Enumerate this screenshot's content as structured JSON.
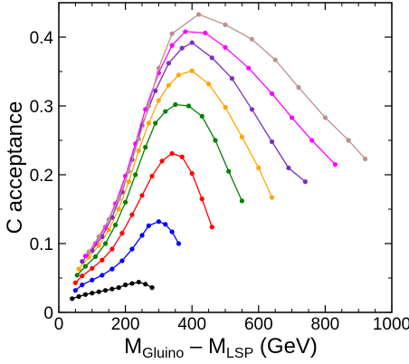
{
  "chart_data": {
    "type": "line",
    "title": "",
    "ylabel": "C  acceptance",
    "xlabel": {
      "parts": [
        {
          "text": "M",
          "sub": false
        },
        {
          "text": "Gluino",
          "sub": true
        },
        {
          "text": " – M",
          "sub": false
        },
        {
          "text": "LSP",
          "sub": true
        },
        {
          "text": "  (GeV)",
          "sub": false
        }
      ]
    },
    "xlim": [
      0,
      1000
    ],
    "ylim": [
      0,
      0.45
    ],
    "x_ticks": [
      "0",
      "200",
      "400",
      "600",
      "800",
      "1000"
    ],
    "y_ticks": [
      "0",
      "0.1",
      "0.2",
      "0.3",
      "0.4"
    ],
    "grid": false,
    "legend": "none",
    "series": [
      {
        "color": "#000000",
        "points": [
          [
            40,
            0.02
          ],
          [
            60,
            0.023
          ],
          [
            80,
            0.026
          ],
          [
            100,
            0.028
          ],
          [
            120,
            0.03
          ],
          [
            140,
            0.032
          ],
          [
            160,
            0.034
          ],
          [
            180,
            0.036
          ],
          [
            200,
            0.04
          ],
          [
            220,
            0.042
          ],
          [
            240,
            0.044
          ],
          [
            260,
            0.041
          ],
          [
            280,
            0.036
          ]
        ]
      },
      {
        "color": "#0000ff",
        "points": [
          [
            50,
            0.032
          ],
          [
            70,
            0.04
          ],
          [
            100,
            0.047
          ],
          [
            130,
            0.054
          ],
          [
            160,
            0.063
          ],
          [
            190,
            0.075
          ],
          [
            220,
            0.092
          ],
          [
            250,
            0.112
          ],
          [
            270,
            0.126
          ],
          [
            300,
            0.132
          ],
          [
            320,
            0.128
          ],
          [
            340,
            0.117
          ],
          [
            360,
            0.1
          ]
        ]
      },
      {
        "color": "#ff0000",
        "points": [
          [
            50,
            0.043
          ],
          [
            70,
            0.053
          ],
          [
            100,
            0.064
          ],
          [
            130,
            0.076
          ],
          [
            160,
            0.092
          ],
          [
            190,
            0.115
          ],
          [
            220,
            0.142
          ],
          [
            250,
            0.17
          ],
          [
            280,
            0.198
          ],
          [
            310,
            0.22
          ],
          [
            340,
            0.231
          ],
          [
            370,
            0.226
          ],
          [
            400,
            0.202
          ],
          [
            430,
            0.165
          ],
          [
            460,
            0.124
          ]
        ]
      },
      {
        "color": "#008000",
        "points": [
          [
            55,
            0.054
          ],
          [
            80,
            0.067
          ],
          [
            110,
            0.081
          ],
          [
            140,
            0.1
          ],
          [
            170,
            0.127
          ],
          [
            200,
            0.16
          ],
          [
            230,
            0.2
          ],
          [
            260,
            0.24
          ],
          [
            290,
            0.275
          ],
          [
            320,
            0.292
          ],
          [
            350,
            0.302
          ],
          [
            390,
            0.3
          ],
          [
            430,
            0.285
          ],
          [
            470,
            0.25
          ],
          [
            510,
            0.205
          ],
          [
            550,
            0.162
          ]
        ]
      },
      {
        "color": "#ffa500",
        "points": [
          [
            60,
            0.063
          ],
          [
            90,
            0.08
          ],
          [
            120,
            0.097
          ],
          [
            150,
            0.12
          ],
          [
            180,
            0.15
          ],
          [
            210,
            0.19
          ],
          [
            240,
            0.235
          ],
          [
            270,
            0.275
          ],
          [
            300,
            0.308
          ],
          [
            330,
            0.33
          ],
          [
            360,
            0.345
          ],
          [
            400,
            0.351
          ],
          [
            450,
            0.332
          ],
          [
            500,
            0.298
          ],
          [
            550,
            0.255
          ],
          [
            600,
            0.21
          ],
          [
            640,
            0.167
          ]
        ]
      },
      {
        "color": "#7b2fbe",
        "points": [
          [
            70,
            0.074
          ],
          [
            100,
            0.09
          ],
          [
            130,
            0.11
          ],
          [
            160,
            0.138
          ],
          [
            190,
            0.175
          ],
          [
            220,
            0.222
          ],
          [
            250,
            0.272
          ],
          [
            290,
            0.322
          ],
          [
            330,
            0.362
          ],
          [
            370,
            0.384
          ],
          [
            400,
            0.392
          ],
          [
            460,
            0.37
          ],
          [
            520,
            0.34
          ],
          [
            580,
            0.295
          ],
          [
            640,
            0.248
          ],
          [
            690,
            0.21
          ],
          [
            740,
            0.19
          ]
        ]
      },
      {
        "color": "#ff00ff",
        "points": [
          [
            80,
            0.082
          ],
          [
            110,
            0.1
          ],
          [
            140,
            0.124
          ],
          [
            170,
            0.158
          ],
          [
            200,
            0.198
          ],
          [
            230,
            0.245
          ],
          [
            260,
            0.295
          ],
          [
            300,
            0.348
          ],
          [
            340,
            0.388
          ],
          [
            380,
            0.408
          ],
          [
            440,
            0.406
          ],
          [
            500,
            0.385
          ],
          [
            570,
            0.355
          ],
          [
            640,
            0.318
          ],
          [
            700,
            0.283
          ],
          [
            760,
            0.25
          ],
          [
            830,
            0.215
          ]
        ]
      },
      {
        "color": "#bc8f8f",
        "points": [
          [
            90,
            0.088
          ],
          [
            120,
            0.11
          ],
          [
            150,
            0.135
          ],
          [
            180,
            0.165
          ],
          [
            210,
            0.205
          ],
          [
            240,
            0.252
          ],
          [
            270,
            0.3
          ],
          [
            300,
            0.355
          ],
          [
            340,
            0.405
          ],
          [
            420,
            0.433
          ],
          [
            500,
            0.418
          ],
          [
            580,
            0.397
          ],
          [
            650,
            0.367
          ],
          [
            720,
            0.327
          ],
          [
            800,
            0.283
          ],
          [
            870,
            0.25
          ],
          [
            920,
            0.223
          ]
        ]
      }
    ]
  }
}
